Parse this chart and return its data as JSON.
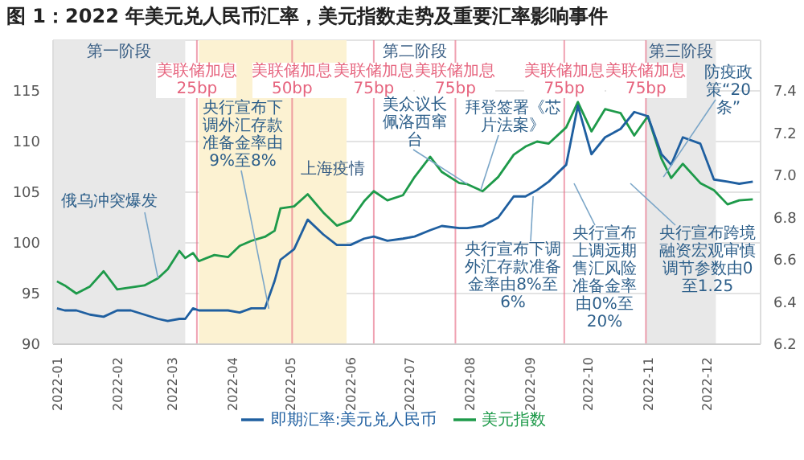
{
  "chart_data": {
    "type": "line",
    "title": "图 1：2022 年美元兑人民币汇率，美元指数走势及重要汇率影响事件",
    "xlim": [
      "2022-01-01",
      "2022-12-31"
    ],
    "xticks": [
      {
        "value": "2022-01-01",
        "label": "2022-01"
      },
      {
        "value": "2022-02-01",
        "label": "2022-02"
      },
      {
        "value": "2022-03-01",
        "label": "2022-03"
      },
      {
        "value": "2022-04-01",
        "label": "2022-04"
      },
      {
        "value": "2022-05-01",
        "label": "2022-05"
      },
      {
        "value": "2022-06-01",
        "label": "2022-06"
      },
      {
        "value": "2022-07-01",
        "label": "2022-07"
      },
      {
        "value": "2022-08-01",
        "label": "2022-08"
      },
      {
        "value": "2022-09-01",
        "label": "2022-09"
      },
      {
        "value": "2022-10-01",
        "label": "2022-10"
      },
      {
        "value": "2022-11-01",
        "label": "2022-11"
      },
      {
        "value": "2022-12-01",
        "label": "2022-12"
      }
    ],
    "ylim": [
      90,
      120
    ],
    "yticks": [
      90,
      95,
      100,
      105,
      110,
      115
    ],
    "y2lim": [
      6.2,
      7.64
    ],
    "y2ticks": [
      6.2,
      6.4,
      6.6,
      6.8,
      {
        "value": 7,
        "label": "7.0"
      },
      7.2,
      7.4
    ],
    "grid": "y",
    "legend": "bottom",
    "series": [
      {
        "name": "美元指数",
        "color": "#1e9a4a",
        "x": [
          "2022-01-03",
          "2022-01-07",
          "2022-01-13",
          "2022-01-20",
          "2022-01-27",
          "2022-02-03",
          "2022-02-10",
          "2022-02-17",
          "2022-02-24",
          "2022-03-01",
          "2022-03-07",
          "2022-03-10",
          "2022-03-14",
          "2022-03-17",
          "2022-03-25",
          "2022-04-01",
          "2022-04-07",
          "2022-04-13",
          "2022-04-20",
          "2022-04-25",
          "2022-04-28",
          "2022-05-05",
          "2022-05-12",
          "2022-05-20",
          "2022-05-27",
          "2022-06-03",
          "2022-06-10",
          "2022-06-15",
          "2022-06-22",
          "2022-06-30",
          "2022-07-06",
          "2022-07-14",
          "2022-07-20",
          "2022-07-29",
          "2022-08-02",
          "2022-08-10",
          "2022-08-18",
          "2022-08-26",
          "2022-09-01",
          "2022-09-07",
          "2022-09-13",
          "2022-09-22",
          "2022-09-28",
          "2022-10-05",
          "2022-10-12",
          "2022-10-20",
          "2022-10-27",
          "2022-11-03",
          "2022-11-10",
          "2022-11-15",
          "2022-11-21",
          "2022-11-30",
          "2022-12-07",
          "2022-12-14",
          "2022-12-20",
          "2022-12-27"
        ],
        "values": [
          96.2,
          95.8,
          95.0,
          95.7,
          97.2,
          95.4,
          95.6,
          95.8,
          96.5,
          97.4,
          99.2,
          98.5,
          99.0,
          98.2,
          98.8,
          98.6,
          99.7,
          100.2,
          100.6,
          101.2,
          103.4,
          103.6,
          104.8,
          103.0,
          101.7,
          102.2,
          104.1,
          105.1,
          104.2,
          104.7,
          106.5,
          108.5,
          107.0,
          105.9,
          105.8,
          105.1,
          106.5,
          108.7,
          109.5,
          110.0,
          109.8,
          111.4,
          113.9,
          111.0,
          113.2,
          112.8,
          110.6,
          112.5,
          108.3,
          106.4,
          107.8,
          105.9,
          105.2,
          103.8,
          104.2,
          104.3
        ]
      },
      {
        "name": "即期汇率:美元兑人民币",
        "color": "#1f5fa0",
        "axis": "y2",
        "x": [
          "2022-01-03",
          "2022-01-07",
          "2022-01-13",
          "2022-01-20",
          "2022-01-27",
          "2022-02-03",
          "2022-02-10",
          "2022-02-17",
          "2022-02-24",
          "2022-03-01",
          "2022-03-07",
          "2022-03-10",
          "2022-03-14",
          "2022-03-17",
          "2022-03-25",
          "2022-04-01",
          "2022-04-07",
          "2022-04-13",
          "2022-04-20",
          "2022-04-25",
          "2022-04-28",
          "2022-05-05",
          "2022-05-12",
          "2022-05-20",
          "2022-05-27",
          "2022-06-03",
          "2022-06-10",
          "2022-06-15",
          "2022-06-22",
          "2022-06-30",
          "2022-07-06",
          "2022-07-14",
          "2022-07-20",
          "2022-07-29",
          "2022-08-02",
          "2022-08-10",
          "2022-08-18",
          "2022-08-26",
          "2022-09-01",
          "2022-09-07",
          "2022-09-13",
          "2022-09-22",
          "2022-09-28",
          "2022-10-05",
          "2022-10-12",
          "2022-10-20",
          "2022-10-27",
          "2022-11-03",
          "2022-11-10",
          "2022-11-15",
          "2022-11-21",
          "2022-11-30",
          "2022-12-07",
          "2022-12-14",
          "2022-12-20",
          "2022-12-27"
        ],
        "values": [
          6.37,
          6.36,
          6.36,
          6.34,
          6.33,
          6.36,
          6.36,
          6.34,
          6.32,
          6.31,
          6.32,
          6.32,
          6.37,
          6.36,
          6.36,
          6.36,
          6.35,
          6.37,
          6.37,
          6.5,
          6.6,
          6.65,
          6.79,
          6.72,
          6.67,
          6.67,
          6.7,
          6.71,
          6.69,
          6.7,
          6.71,
          6.74,
          6.76,
          6.75,
          6.75,
          6.76,
          6.8,
          6.9,
          6.9,
          6.93,
          6.97,
          7.05,
          7.33,
          7.1,
          7.18,
          7.22,
          7.3,
          7.28,
          7.1,
          7.05,
          7.18,
          7.15,
          6.98,
          6.97,
          6.96,
          6.97
        ]
      }
    ],
    "bands": [
      {
        "axis": "x",
        "from": "2022-01-01",
        "to": "2022-03-10",
        "label": "第一阶段",
        "color": "#e8e8e8"
      },
      {
        "axis": "x",
        "from": "2022-03-17",
        "to": "2022-06-01",
        "label": "上海疫情",
        "color": "#fcf2d2"
      },
      {
        "axis": "x",
        "from": "2022-11-02",
        "to": "2022-12-08",
        "label": "第三阶段",
        "color": "#e8e8e8"
      }
    ],
    "ref_lines": [
      {
        "axis": "x",
        "value": "2022-03-16",
        "label": "美联储加息 25bp",
        "color": "#e6647e"
      },
      {
        "axis": "x",
        "value": "2022-05-04",
        "label": "美联储加息 50bp",
        "color": "#e6647e"
      },
      {
        "axis": "x",
        "value": "2022-06-15",
        "label": "美联储加息 75bp",
        "color": "#e6647e"
      },
      {
        "axis": "x",
        "value": "2022-07-27",
        "label": "美联储加息 75bp",
        "color": "#e6647e"
      },
      {
        "axis": "x",
        "value": "2022-09-21",
        "label": "美联储加息 75bp",
        "color": "#e6647e"
      },
      {
        "axis": "x",
        "value": "2022-11-02",
        "label": "美联储加息 75bp",
        "color": "#e6647e"
      }
    ],
    "annotations": [
      {
        "text": "俄乌冲突爆发",
        "x": "2022-02-24",
        "y": 96.5
      },
      {
        "text": "央行宣布下调外汇存款准备金率由9%至8%",
        "x": "2022-04-22",
        "y": 93.5
      },
      {
        "text": "美众议长佩洛西窜台",
        "x": "2022-08-02",
        "y": 105.8
      },
      {
        "text": "拜登签署《芯片法案》",
        "x": "2022-08-09",
        "y": 105.2
      },
      {
        "text": "央行宣布下调外汇存款准备金率由8%至6%",
        "x": "2022-09-05",
        "y": 104.6
      },
      "央行宣布上调远期售汇风险准备金率由0%至20%",
      "央行宣布跨境融资宏观审慎调节参数由0至1.25",
      {
        "text": "防疫政策“20条”",
        "x": "2022-11-11",
        "y": 106.5
      },
      "第二阶段"
    ]
  }
}
